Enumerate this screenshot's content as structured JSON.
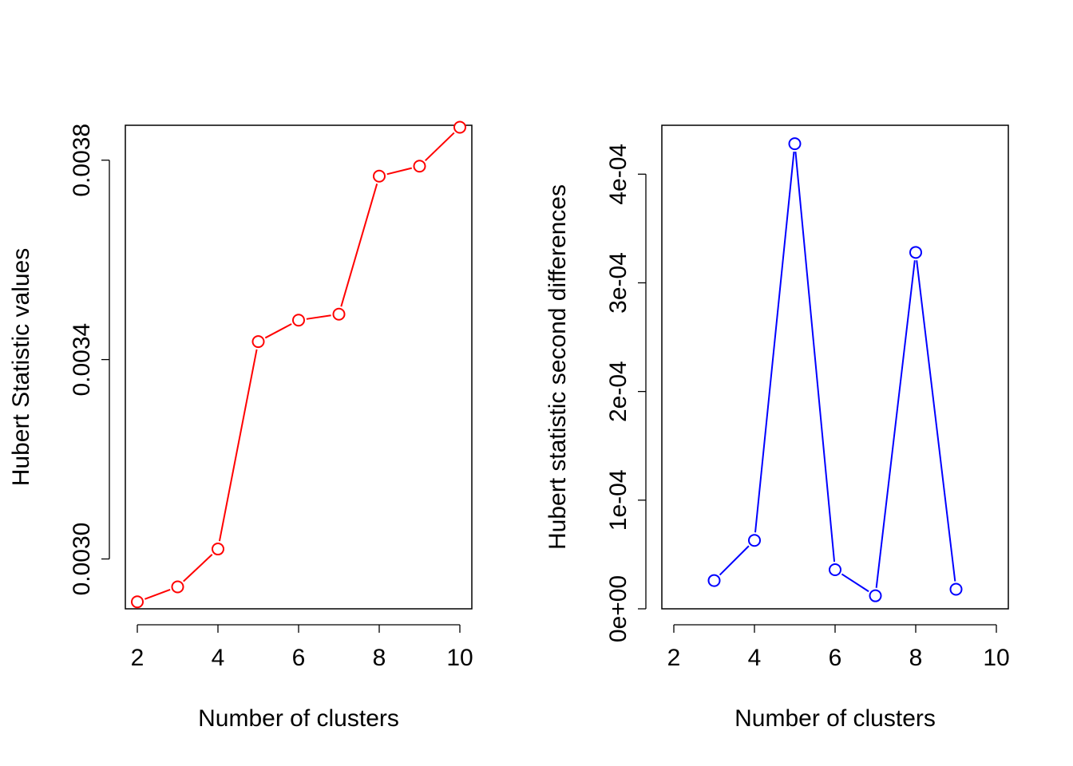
{
  "chart_data": [
    {
      "type": "line",
      "xlabel": "Number of clusters",
      "ylabel": "Hubert Statistic values",
      "xlim": [
        2,
        10
      ],
      "ylim": [
        0.0029,
        0.00387
      ],
      "x_ticks": [
        2,
        4,
        6,
        8,
        10
      ],
      "y_ticks": [
        0.003,
        0.0034,
        0.0038
      ],
      "x_tick_labels": [
        "2",
        "4",
        "6",
        "8",
        "10"
      ],
      "y_tick_labels": [
        "0.0030",
        "0.0034",
        "0.0038"
      ],
      "color": "#ff0000",
      "marker": "open-circle",
      "x": [
        2,
        3,
        4,
        5,
        6,
        7,
        8,
        9,
        10
      ],
      "y": [
        0.002914,
        0.002944,
        0.00302,
        0.003436,
        0.003479,
        0.003491,
        0.003768,
        0.003788,
        0.003866
      ]
    },
    {
      "type": "line",
      "xlabel": "Number of clusters",
      "ylabel": "Hubert statistic second differences",
      "xlim": [
        2,
        10
      ],
      "ylim": [
        0,
        0.000445
      ],
      "x_ticks": [
        2,
        4,
        6,
        8,
        10
      ],
      "y_ticks": [
        0,
        0.0001,
        0.0002,
        0.0003,
        0.0004
      ],
      "x_tick_labels": [
        "2",
        "4",
        "6",
        "8",
        "10"
      ],
      "y_tick_labels": [
        "0e+00",
        "1e-04",
        "2e-04",
        "3e-04",
        "4e-04"
      ],
      "color": "#0000ff",
      "marker": "open-circle",
      "x": [
        3,
        4,
        5,
        6,
        7,
        8,
        9
      ],
      "y": [
        2.6e-05,
        6.3e-05,
        0.000428,
        3.6e-05,
        1.2e-05,
        0.000328,
        1.8e-05
      ]
    }
  ]
}
